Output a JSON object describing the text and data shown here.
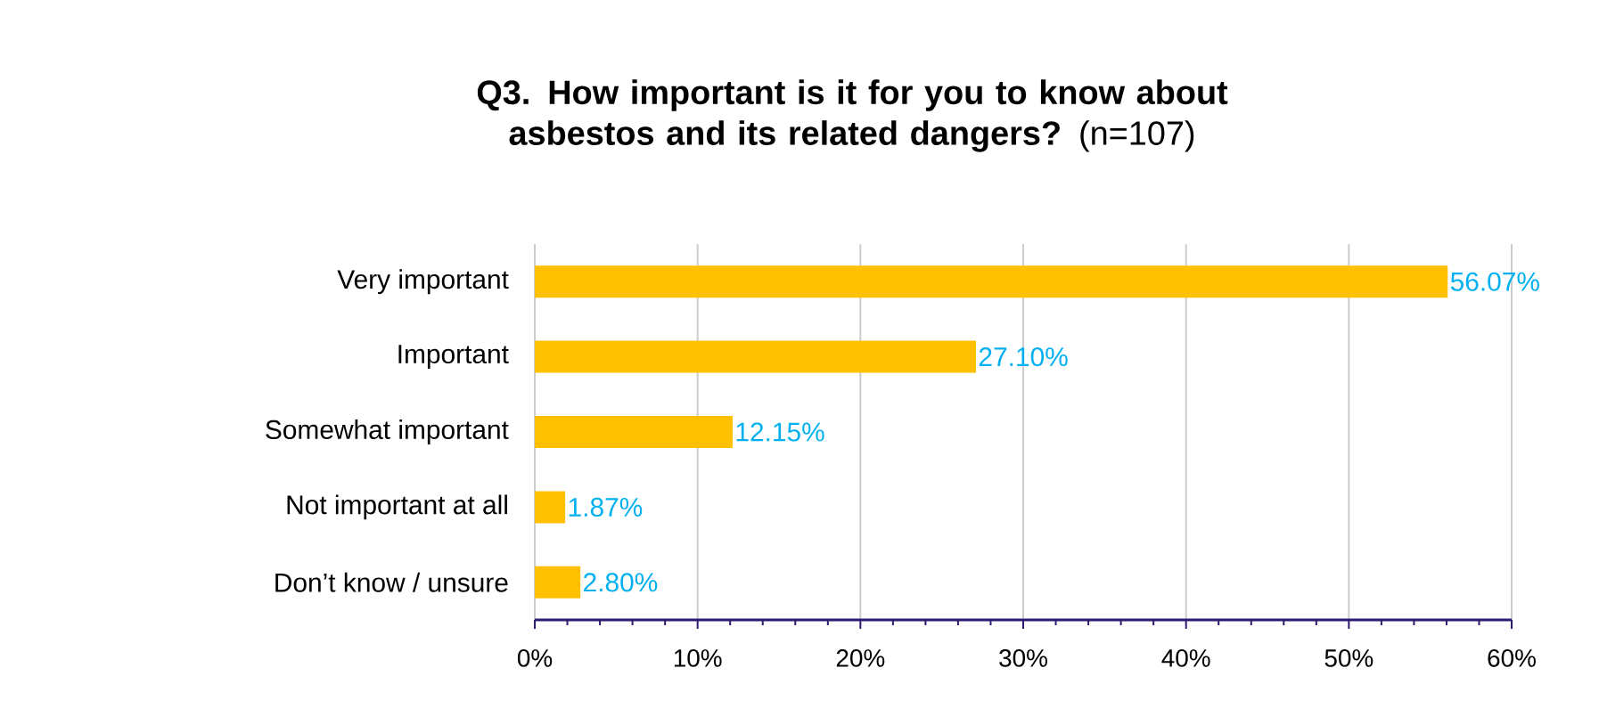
{
  "chart_data": {
    "type": "bar",
    "orientation": "horizontal",
    "title": "**Q3. How important is it for you to know about asbestos and its related dangers?** (n=107)",
    "categories": [
      "Very important",
      "Important",
      "Somewhat important",
      "Not important at all",
      "Don’t know / unsure"
    ],
    "values": [
      56.07,
      27.1,
      12.15,
      1.87,
      2.8
    ],
    "value_labels": [
      "56.07%",
      "27.10%",
      "12.15%",
      "1.87%",
      "2.80%"
    ],
    "color": "#ffc000",
    "xlim": [
      0,
      60
    ],
    "xticks": [
      {
        "value": 0,
        "label": "0%"
      },
      {
        "value": 10,
        "label": "10%"
      },
      {
        "value": 20,
        "label": "20%"
      },
      {
        "value": 30,
        "label": "30%"
      },
      {
        "value": 40,
        "label": "40%"
      },
      {
        "value": 50,
        "label": "50%"
      },
      {
        "value": 60,
        "label": "60%"
      }
    ],
    "grid": "x"
  }
}
